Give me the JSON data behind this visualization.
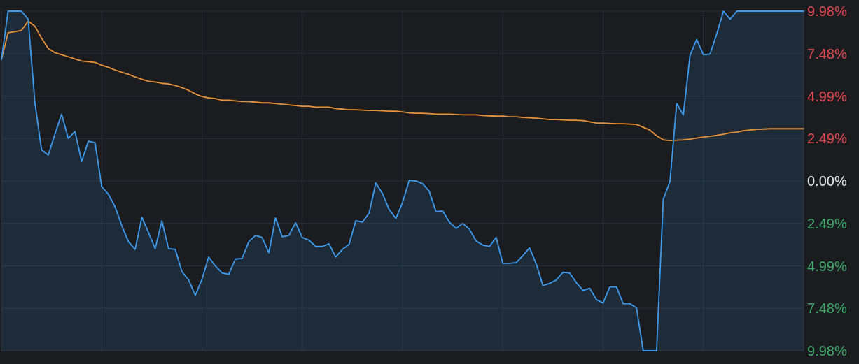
{
  "chart_data": {
    "type": "line",
    "categories": [
      null,
      null,
      null,
      null,
      null,
      null,
      null,
      null,
      null,
      null,
      null,
      null,
      null,
      null,
      null,
      null,
      null,
      null,
      null,
      null,
      null,
      null,
      null,
      null,
      null,
      null,
      null,
      null,
      null,
      null,
      null,
      null,
      null,
      null,
      null,
      null,
      null,
      null,
      null,
      null,
      null,
      null,
      null,
      null,
      null,
      null,
      null,
      null,
      null,
      null,
      null,
      null,
      null,
      null,
      null,
      null,
      null,
      null,
      null,
      null,
      null,
      null,
      null,
      null,
      null,
      null,
      null,
      null,
      null,
      null,
      null,
      null,
      null,
      null,
      null,
      null,
      null,
      null,
      null,
      null,
      null,
      null,
      null,
      null,
      null,
      null,
      null,
      null,
      null,
      null,
      null,
      null,
      null,
      null,
      null,
      null,
      null,
      null,
      null,
      null,
      null,
      null,
      null,
      null,
      null,
      null,
      null,
      null,
      null,
      null,
      null,
      null,
      null,
      null,
      null,
      null,
      null,
      null,
      null,
      null,
      null
    ],
    "series": [
      {
        "color": "#e8923a",
        "values": [
          7.13,
          8.71,
          8.77,
          8.85,
          9.39,
          9.1,
          8.4,
          7.79,
          7.54,
          7.42,
          7.3,
          7.17,
          7.05,
          7.01,
          6.97,
          6.8,
          6.68,
          6.52,
          6.39,
          6.27,
          6.11,
          5.98,
          5.86,
          5.82,
          5.74,
          5.7,
          5.61,
          5.49,
          5.33,
          5.12,
          4.96,
          4.88,
          4.84,
          4.75,
          4.75,
          4.71,
          4.67,
          4.67,
          4.63,
          4.59,
          4.59,
          4.55,
          4.51,
          4.47,
          4.43,
          4.39,
          4.39,
          4.34,
          4.34,
          4.34,
          4.26,
          4.22,
          4.18,
          4.18,
          4.16,
          4.14,
          4.14,
          4.12,
          4.1,
          4.1,
          4.06,
          4.0,
          3.98,
          3.98,
          3.96,
          3.93,
          3.93,
          3.93,
          3.91,
          3.89,
          3.89,
          3.89,
          3.85,
          3.83,
          3.81,
          3.81,
          3.77,
          3.77,
          3.73,
          3.71,
          3.69,
          3.65,
          3.61,
          3.61,
          3.59,
          3.57,
          3.57,
          3.55,
          3.48,
          3.4,
          3.4,
          3.38,
          3.36,
          3.36,
          3.34,
          3.32,
          3.16,
          2.99,
          2.66,
          2.42,
          2.38,
          2.4,
          2.42,
          2.46,
          2.52,
          2.58,
          2.62,
          2.68,
          2.75,
          2.83,
          2.87,
          2.95,
          2.99,
          3.03,
          3.05,
          3.07,
          3.07,
          3.07,
          3.07,
          3.07,
          3.07
        ]
      },
      {
        "color": "#3d9cf0",
        "values": [
          7.13,
          9.98,
          9.98,
          9.98,
          9.51,
          4.63,
          1.84,
          1.52,
          2.75,
          3.93,
          2.5,
          2.91,
          1.15,
          2.34,
          2.25,
          -0.33,
          -0.78,
          -1.52,
          -2.62,
          -3.57,
          -4.02,
          -2.13,
          -3.03,
          -3.98,
          -2.34,
          -3.98,
          -4.02,
          -5.33,
          -5.82,
          -6.72,
          -5.78,
          -4.47,
          -5.0,
          -5.41,
          -5.49,
          -4.59,
          -4.55,
          -3.57,
          -3.2,
          -3.32,
          -4.22,
          -2.17,
          -3.28,
          -3.2,
          -2.46,
          -3.32,
          -3.48,
          -3.85,
          -3.85,
          -3.69,
          -4.47,
          -4.02,
          -3.73,
          -2.34,
          -2.42,
          -1.89,
          -0.12,
          -0.74,
          -1.68,
          -2.21,
          -1.27,
          0.04,
          0.0,
          -0.16,
          -0.61,
          -1.8,
          -1.76,
          -2.42,
          -2.79,
          -2.5,
          -2.83,
          -3.52,
          -3.77,
          -3.85,
          -3.32,
          -4.84,
          -4.84,
          -4.8,
          -4.39,
          -3.93,
          -4.88,
          -6.15,
          -6.02,
          -5.82,
          -5.37,
          -5.41,
          -5.98,
          -6.43,
          -6.31,
          -6.97,
          -7.17,
          -6.23,
          -6.23,
          -7.21,
          -7.21,
          -7.46,
          -9.98,
          -9.98,
          -9.98,
          -1.07,
          -0.04,
          4.55,
          3.89,
          7.38,
          8.32,
          7.42,
          7.46,
          8.65,
          9.98,
          9.51,
          9.98,
          9.98,
          9.98,
          9.98,
          9.98,
          9.98,
          9.98,
          9.98,
          9.98,
          9.98,
          9.98
        ],
        "lower": [
          -9.98,
          -9.98,
          -9.98,
          -9.98,
          -9.98,
          -9.98,
          -9.98,
          -9.98,
          -9.98,
          -9.98,
          -9.98,
          -9.98,
          -9.98,
          -9.98,
          -9.98,
          -9.98,
          -9.98,
          -9.98,
          -9.98,
          -9.98,
          -9.98,
          -9.98,
          -9.98,
          -9.98,
          -9.98,
          -9.98,
          -9.98,
          -9.98,
          -9.98,
          -9.98,
          -9.98,
          -9.98,
          -9.98,
          -9.98,
          -9.98,
          -9.98,
          -9.98,
          -9.98,
          -9.98,
          -9.98,
          -9.98,
          -9.98,
          -9.98,
          -9.98,
          -9.98,
          -9.98,
          -9.98,
          -9.98,
          -9.98,
          -9.98,
          -9.98,
          -9.98,
          -9.98,
          -9.98,
          -9.98,
          -9.98,
          -9.98,
          -9.98,
          -9.98,
          -9.98,
          -9.98,
          -9.98,
          -9.98,
          -9.98,
          -9.98,
          -9.98,
          -9.98,
          -9.98,
          -9.98,
          -9.98,
          -9.98,
          -9.98,
          -9.98,
          -9.98,
          -9.98,
          -9.98,
          -9.98,
          -9.98,
          -9.98,
          -9.98,
          -9.98,
          -9.98,
          -9.98,
          -9.98,
          -9.98,
          -9.98,
          -9.98,
          -9.98,
          -9.98,
          -9.98,
          -9.98,
          -9.98,
          -9.98,
          -9.98,
          -9.98,
          -9.98,
          -9.98,
          -9.98,
          -9.98,
          -9.98,
          -9.98,
          -9.98,
          -9.98,
          -9.98,
          -9.98,
          -9.98,
          -9.98,
          -9.98,
          -9.98,
          -9.98,
          -9.98,
          -9.98,
          -9.98,
          -9.98,
          -9.98,
          -9.98,
          -9.98,
          -9.98,
          -9.98,
          -9.98,
          -9.98
        ],
        "upper": [
          7.13,
          9.98,
          9.98,
          9.98,
          9.51,
          4.63,
          1.84,
          1.52,
          2.75,
          3.93,
          2.5,
          2.91,
          1.15,
          2.34,
          2.25,
          -0.33,
          -0.78,
          -1.52,
          -2.62,
          -3.57,
          -4.02,
          -2.13,
          -3.03,
          -3.98,
          -2.34,
          -3.98,
          -4.02,
          -5.33,
          -5.82,
          -6.72,
          -5.78,
          -4.47,
          -5.0,
          -5.41,
          -5.49,
          -4.59,
          -4.55,
          -3.57,
          -3.2,
          -3.32,
          -4.22,
          -2.17,
          -3.28,
          -3.2,
          -2.46,
          -3.32,
          -3.48,
          -3.85,
          -3.85,
          -3.69,
          -4.47,
          -4.02,
          -3.73,
          -2.34,
          -2.42,
          -1.89,
          -0.12,
          -0.74,
          -1.68,
          -2.21,
          -1.27,
          0.04,
          0.0,
          -0.16,
          -0.61,
          -1.8,
          -1.76,
          -2.42,
          -2.79,
          -2.5,
          -2.83,
          -3.52,
          -3.77,
          -3.85,
          -3.32,
          -4.84,
          -4.84,
          -4.8,
          -4.39,
          -3.93,
          -4.88,
          -6.15,
          -6.02,
          -5.82,
          -5.37,
          -5.41,
          -5.98,
          -6.43,
          -6.31,
          -6.97,
          -7.17,
          -6.23,
          -6.23,
          -7.21,
          -7.21,
          -7.46,
          -9.98,
          -9.98,
          -9.98,
          -1.07,
          -0.04,
          4.55,
          3.89,
          7.38,
          8.32,
          7.42,
          7.46,
          8.65,
          9.98,
          9.51,
          9.98,
          9.98,
          9.98,
          9.98,
          9.98,
          9.98,
          9.98,
          9.98,
          9.98,
          9.98,
          9.98
        ]
      }
    ],
    "ylim": [
      -9.98,
      9.98
    ],
    "yticks": [
      {
        "value": 9.98,
        "label": "9.98%"
      },
      {
        "value": 7.48,
        "label": "7.48%"
      },
      {
        "value": 4.99,
        "label": "4.99%"
      },
      {
        "value": 2.49,
        "label": "2.49%"
      },
      {
        "value": 0,
        "label": "0.00%"
      },
      {
        "value": -2.49,
        "label": "2.49%"
      },
      {
        "value": -4.99,
        "label": "4.99%"
      },
      {
        "value": -7.48,
        "label": "7.48%"
      },
      {
        "value": -9.98,
        "label": "9.98%"
      }
    ],
    "grid": true,
    "tick_labels": "y"
  }
}
